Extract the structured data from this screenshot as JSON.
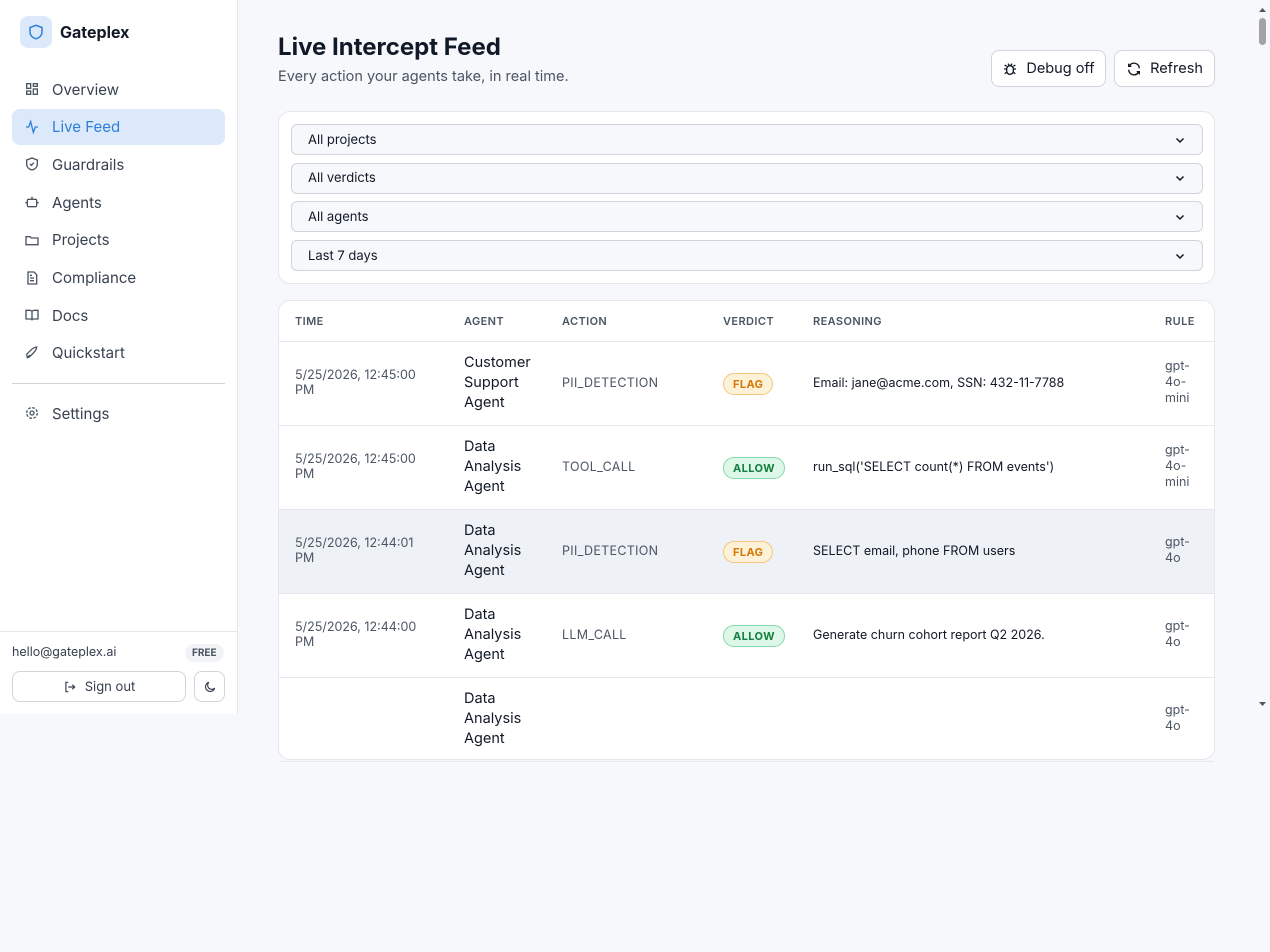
{
  "sidebar": {
    "brand": "Gateplex",
    "nav": [
      "Overview",
      "Live Feed",
      "Guardrails",
      "Agents",
      "Projects",
      "Compliance",
      "Docs",
      "Quickstart"
    ],
    "settings": "Settings",
    "email": "hello@gateplex.ai",
    "plan": "FREE",
    "sign_out": "Sign out"
  },
  "header": {
    "title": "Live Intercept Feed",
    "subtitle": "Every action your agents take, in real time.",
    "debug": "Debug off",
    "refresh": "Refresh"
  },
  "filters": [
    "All projects",
    "All verdicts",
    "All agents",
    "Last 7 days"
  ],
  "table": {
    "columns": [
      "TIME",
      "AGENT",
      "ACTION",
      "VERDICT",
      "REASONING",
      "RULE"
    ],
    "rows": [
      {
        "time": "5/25/2026, 12:45:00 PM",
        "agent": "Customer Support Agent",
        "action": "PII_DETECTION",
        "verdict": "FLAG",
        "reasoning": "Email: jane@acme.com, SSN: 432-11-7788",
        "rule": "gpt-4o-mini"
      },
      {
        "time": "5/25/2026, 12:45:00 PM",
        "agent": "Data Analysis Agent",
        "action": "TOOL_CALL",
        "verdict": "ALLOW",
        "reasoning": "run_sql('SELECT count(*) FROM events')",
        "rule": "gpt-4o-mini"
      },
      {
        "time": "5/25/2026, 12:44:01 PM",
        "agent": "Data Analysis Agent",
        "action": "PII_DETECTION",
        "verdict": "FLAG",
        "reasoning": "SELECT email, phone FROM users",
        "rule": "gpt-4o"
      },
      {
        "time": "5/25/2026, 12:44:00 PM",
        "agent": "Data Analysis Agent",
        "action": "LLM_CALL",
        "verdict": "ALLOW",
        "reasoning": "Generate churn cohort report Q2 2026.",
        "rule": "gpt-4o"
      },
      {
        "agent": "Data Analysis Agent",
        "rule": "gpt-4o"
      }
    ]
  }
}
